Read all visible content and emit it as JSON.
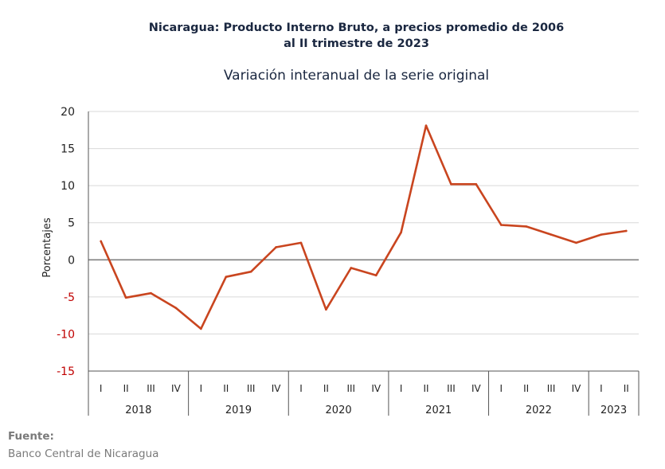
{
  "header": {
    "title_line1": "Nicaragua: Producto Interno Bruto, a precios promedio de 2006",
    "title_line2": "al II trimestre de 2023",
    "subtitle": "Variación interanual de la serie original"
  },
  "footer": {
    "source_label": "Fuente:",
    "source_text": "Banco Central de Nicaragua"
  },
  "colors": {
    "line": "#c9451f",
    "grid": "#d9d9d9",
    "zero": "#808080",
    "negative_tick": "#c00000",
    "axis_text": "#222222"
  },
  "chart_data": {
    "type": "line",
    "title": "Nicaragua: Producto Interno Bruto, a precios promedio de 2006 al II trimestre de 2023",
    "subtitle": "Variación interanual de la serie original",
    "ylabel": "Porcentajes",
    "xlabel": "",
    "ylim": [
      -15,
      20
    ],
    "yticks": [
      "20",
      "15",
      "10",
      "5",
      "0",
      "-5",
      "-10",
      "-15"
    ],
    "ytick_values": [
      20,
      15,
      10,
      5,
      0,
      -5,
      -10,
      -15
    ],
    "grid": true,
    "legend": "none",
    "quarters": [
      "I",
      "II",
      "III",
      "IV",
      "I",
      "II",
      "III",
      "IV",
      "I",
      "II",
      "III",
      "IV",
      "I",
      "II",
      "III",
      "IV",
      "I",
      "II",
      "III",
      "IV",
      "I",
      "II"
    ],
    "years": [
      {
        "label": "2018",
        "count": 4
      },
      {
        "label": "2019",
        "count": 4
      },
      {
        "label": "2020",
        "count": 4
      },
      {
        "label": "2021",
        "count": 4
      },
      {
        "label": "2022",
        "count": 4
      },
      {
        "label": "2023",
        "count": 2
      }
    ],
    "series": [
      {
        "values": [
          2.5,
          -5.1,
          -4.5,
          -6.5,
          -9.3,
          -2.3,
          -1.6,
          1.7,
          2.3,
          -6.7,
          -1.1,
          -2.1,
          3.7,
          18.1,
          10.2,
          10.2,
          4.7,
          4.5,
          3.4,
          2.3,
          3.4,
          3.9
        ]
      }
    ]
  }
}
